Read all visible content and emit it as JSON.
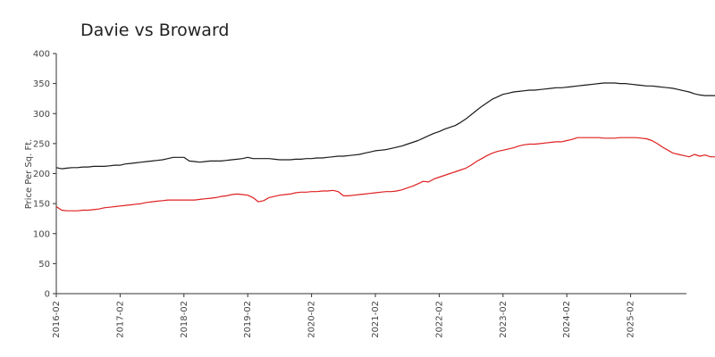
{
  "chart_data": {
    "type": "line",
    "title": "Davie vs Broward",
    "xlabel": "",
    "ylabel": "Price Per Sq. Ft.",
    "ylim": [
      0,
      400
    ],
    "yticks": [
      0,
      50,
      100,
      150,
      200,
      250,
      300,
      350,
      400
    ],
    "xticks": [
      "2016-02",
      "2017-02",
      "2018-02",
      "2019-02",
      "2020-02",
      "2021-02",
      "2022-02",
      "2023-02",
      "2024-02",
      "2025-02"
    ],
    "x_start": "2016-02",
    "grid": false,
    "legend": "none",
    "series": [
      {
        "color": "#1a1a1a",
        "values": [
          210,
          208,
          209,
          210,
          210,
          211,
          211,
          212,
          212,
          212,
          213,
          214,
          214,
          216,
          217,
          218,
          219,
          220,
          221,
          222,
          223,
          225,
          227,
          227,
          227,
          221,
          220,
          219,
          220,
          221,
          221,
          221,
          222,
          223,
          224,
          225,
          227,
          225,
          225,
          225,
          225,
          224,
          223,
          223,
          223,
          224,
          224,
          225,
          225,
          226,
          226,
          227,
          228,
          229,
          229,
          230,
          231,
          232,
          234,
          236,
          238,
          239,
          240,
          242,
          244,
          246,
          249,
          252,
          255,
          259,
          263,
          267,
          270,
          274,
          277,
          280,
          285,
          291,
          298,
          305,
          312,
          318,
          324,
          328,
          332,
          334,
          336,
          337,
          338,
          339,
          339,
          340,
          341,
          342,
          343,
          343,
          344,
          345,
          346,
          347,
          348,
          349,
          350,
          351,
          351,
          351,
          350,
          350,
          349,
          348,
          347,
          346,
          346,
          345,
          344,
          343,
          342,
          340,
          338,
          336,
          333,
          331,
          330,
          330,
          330,
          330,
          330,
          329,
          329
        ]
      },
      {
        "color": "#e02020",
        "values": [
          145,
          139,
          138,
          138,
          138,
          139,
          139,
          140,
          141,
          143,
          144,
          145,
          146,
          147,
          148,
          149,
          150,
          152,
          153,
          154,
          155,
          156,
          156,
          156,
          156,
          156,
          156,
          157,
          158,
          159,
          160,
          162,
          163,
          165,
          166,
          165,
          164,
          160,
          153,
          155,
          160,
          162,
          164,
          165,
          166,
          168,
          169,
          169,
          170,
          170,
          171,
          171,
          172,
          170,
          163,
          163,
          164,
          165,
          166,
          167,
          168,
          169,
          170,
          170,
          171,
          173,
          176,
          179,
          183,
          187,
          186,
          191,
          194,
          197,
          200,
          203,
          206,
          209,
          214,
          220,
          225,
          230,
          234,
          237,
          239,
          241,
          243,
          246,
          248,
          249,
          249,
          250,
          251,
          252,
          253,
          253,
          255,
          257,
          260,
          260,
          260,
          260,
          260,
          259,
          259,
          259,
          260,
          260,
          260,
          260,
          259,
          258,
          255,
          250,
          244,
          239,
          234,
          232,
          230,
          228,
          232,
          229,
          231,
          228,
          228,
          229,
          229,
          229,
          229
        ]
      }
    ]
  }
}
